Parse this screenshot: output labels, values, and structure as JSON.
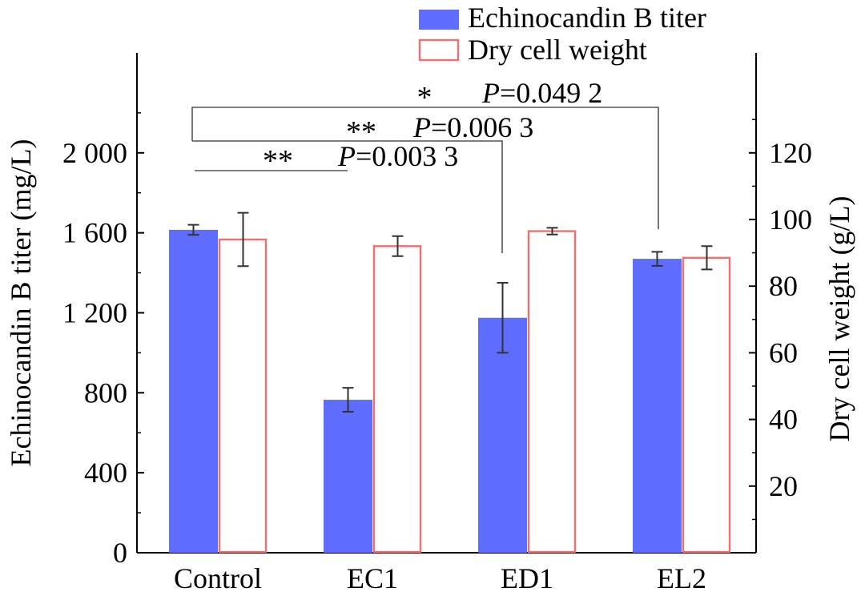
{
  "chart_data": {
    "type": "bar",
    "categories": [
      "Control",
      "EC1",
      "ED1",
      "EL2"
    ],
    "series": [
      {
        "name": "Echinocandin B titer",
        "axis": "left",
        "style": "filled",
        "color": "#5F6DFF",
        "values": [
          1615,
          765,
          1175,
          1470
        ],
        "errors": [
          25,
          60,
          175,
          35
        ]
      },
      {
        "name": "Dry cell weight",
        "axis": "right",
        "style": "outline",
        "color": "#F07070",
        "values": [
          94,
          92,
          96.5,
          88.5
        ],
        "errors": [
          8,
          3,
          1,
          3.5
        ]
      }
    ],
    "ylabel": "Echinocandin B titer (mg/L)",
    "y2label": "Dry cell weight (g/L)",
    "ylim": [
      0,
      2500
    ],
    "y2lim": [
      0,
      150
    ],
    "yticks": [
      0,
      400,
      800,
      1200,
      1600,
      2000
    ],
    "ytick_labels": [
      "0",
      "400",
      "800",
      "1 200",
      "1 600",
      "2 000"
    ],
    "y2ticks": [
      20,
      40,
      60,
      80,
      100,
      120
    ],
    "y2tick_labels": [
      "20",
      "40",
      "60",
      "80",
      "100",
      "120"
    ],
    "legend_position": "top-right",
    "grid": false,
    "annotations": [
      {
        "from": "Control",
        "to": "EC1",
        "stars": "**",
        "p_label": "P",
        "p_value": "=0.003 3"
      },
      {
        "from": "Control",
        "to": "ED1",
        "stars": "**",
        "p_label": "P",
        "p_value": "=0.006 3"
      },
      {
        "from": "Control",
        "to": "EL2",
        "stars": "*",
        "p_label": "P",
        "p_value": "=0.049 2"
      }
    ]
  }
}
